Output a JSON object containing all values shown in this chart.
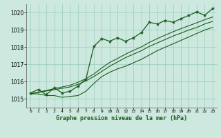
{
  "title": "Graphe pression niveau de la mer (hPa)",
  "xlabel_values": [
    0,
    1,
    2,
    3,
    4,
    5,
    6,
    7,
    8,
    9,
    10,
    11,
    12,
    13,
    14,
    15,
    16,
    17,
    18,
    19,
    20,
    21,
    22,
    23
  ],
  "ylim": [
    1014.5,
    1020.5
  ],
  "yticks": [
    1015,
    1016,
    1017,
    1018,
    1019,
    1020
  ],
  "bg_color": "#cce8df",
  "grid_color": "#99ccbb",
  "line_color": "#1a5c1a",
  "marker_color": "#1a5c1a",
  "series_main": [
    1015.35,
    1015.55,
    1015.25,
    1015.65,
    1015.35,
    1015.45,
    1015.75,
    1016.15,
    1018.05,
    1018.5,
    1018.35,
    1018.55,
    1018.35,
    1018.55,
    1018.85,
    1019.45,
    1019.35,
    1019.55,
    1019.45,
    1019.65,
    1019.85,
    1020.05,
    1019.85,
    1020.25
  ],
  "series_low": [
    1015.3,
    1015.3,
    1015.2,
    1015.2,
    1015.1,
    1015.15,
    1015.2,
    1015.45,
    1015.9,
    1016.3,
    1016.55,
    1016.75,
    1016.9,
    1017.1,
    1017.3,
    1017.55,
    1017.8,
    1018.0,
    1018.2,
    1018.4,
    1018.6,
    1018.8,
    1019.0,
    1019.15
  ],
  "series_trend1": [
    1015.3,
    1015.38,
    1015.46,
    1015.54,
    1015.62,
    1015.7,
    1015.85,
    1016.05,
    1016.3,
    1016.6,
    1016.9,
    1017.15,
    1017.4,
    1017.6,
    1017.8,
    1018.05,
    1018.25,
    1018.45,
    1018.65,
    1018.82,
    1019.0,
    1019.15,
    1019.35,
    1019.5
  ],
  "series_trend2": [
    1015.3,
    1015.4,
    1015.5,
    1015.6,
    1015.7,
    1015.8,
    1015.97,
    1016.18,
    1016.45,
    1016.8,
    1017.12,
    1017.35,
    1017.6,
    1017.82,
    1018.02,
    1018.28,
    1018.5,
    1018.7,
    1018.9,
    1019.08,
    1019.25,
    1019.42,
    1019.6,
    1019.75
  ]
}
